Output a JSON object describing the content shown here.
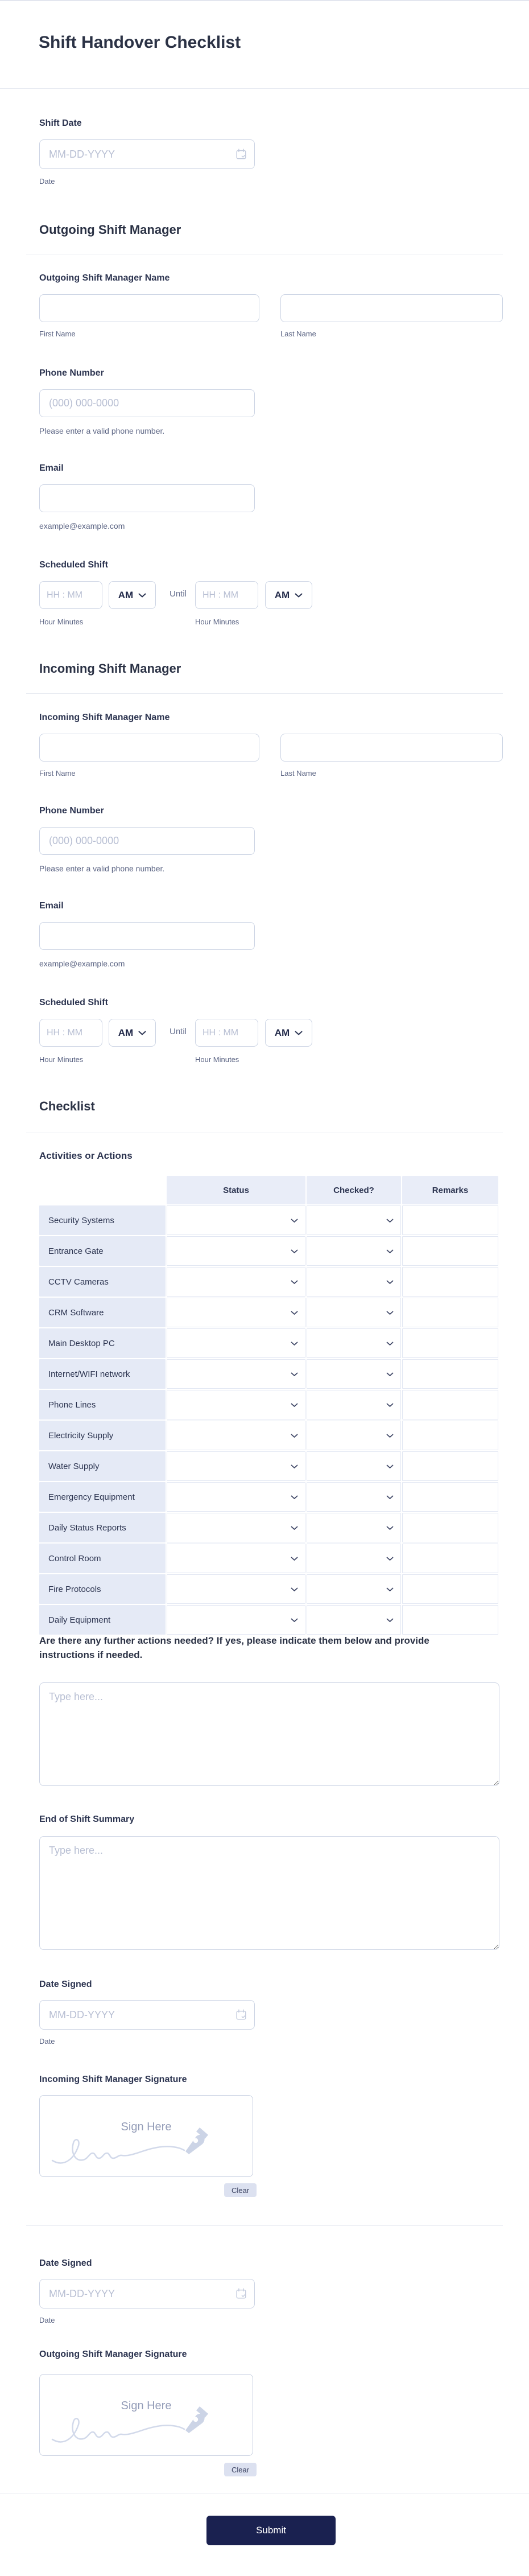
{
  "page": {
    "title": "Shift Handover Checklist",
    "submit_label": "Submit"
  },
  "icons": {
    "calendar": "calendar-icon",
    "chevron": "chevron-down-icon",
    "pen": "pen-nib-icon"
  },
  "colors": {
    "accent": "#1a2150",
    "heading_text": "#2b3245",
    "table_header_bg": "#e9edf8",
    "table_label_bg": "#e5eaf6",
    "input_border": "#ccd4e4"
  },
  "shift_date": {
    "label": "Shift Date",
    "placeholder": "MM-DD-YYYY",
    "sublabel": "Date"
  },
  "outgoing": {
    "heading": "Outgoing Shift Manager",
    "name_label": "Outgoing Shift Manager Name",
    "first_sublabel": "First Name",
    "last_sublabel": "Last Name",
    "phone_label": "Phone Number",
    "phone_placeholder": "(000) 000-0000",
    "phone_hint": "Please enter a valid phone number.",
    "email_label": "Email",
    "email_hint": "example@example.com",
    "shift_label": "Scheduled Shift",
    "time_placeholder": "HH : MM",
    "ampm_value": "AM",
    "until_label": "Until",
    "time_sublabel": "Hour Minutes"
  },
  "incoming": {
    "heading": "Incoming Shift Manager",
    "name_label": "Incoming Shift Manager Name",
    "first_sublabel": "First Name",
    "last_sublabel": "Last Name",
    "phone_label": "Phone Number",
    "phone_placeholder": "(000) 000-0000",
    "phone_hint": "Please enter a valid phone number.",
    "email_label": "Email",
    "email_hint": "example@example.com",
    "shift_label": "Scheduled Shift",
    "time_placeholder": "HH : MM",
    "ampm_value": "AM",
    "until_label": "Until",
    "time_sublabel": "Hour Minutes"
  },
  "checklist": {
    "heading": "Checklist",
    "matrix_label": "Activities or Actions",
    "columns": [
      "Status",
      "Checked?",
      "Remarks"
    ],
    "rows": [
      "Security Systems",
      "Entrance Gate",
      "CCTV Cameras",
      "CRM Software",
      "Main Desktop PC",
      "Internet/WIFI network",
      "Phone Lines",
      "Electricity Supply",
      "Water Supply",
      "Emergency Equipment",
      "Daily Status Reports",
      "Control Room",
      "Fire Protocols",
      "Daily Equipment"
    ],
    "question": "Are there any further actions needed? If yes, please indicate them below and provide instructions if needed.",
    "textarea_placeholder": "Type here..."
  },
  "summary": {
    "label": "End of Shift Summary",
    "placeholder": "Type here..."
  },
  "incoming_signoff": {
    "date_label": "Date Signed",
    "date_placeholder": "MM-DD-YYYY",
    "date_sublabel": "Date",
    "signature_label": "Incoming Shift Manager Signature",
    "sign_here": "Sign Here",
    "clear_label": "Clear"
  },
  "outgoing_signoff": {
    "date_label": "Date Signed",
    "date_placeholder": "MM-DD-YYYY",
    "date_sublabel": "Date",
    "signature_label": "Outgoing Shift Manager Signature",
    "sign_here": "Sign Here",
    "clear_label": "Clear"
  }
}
